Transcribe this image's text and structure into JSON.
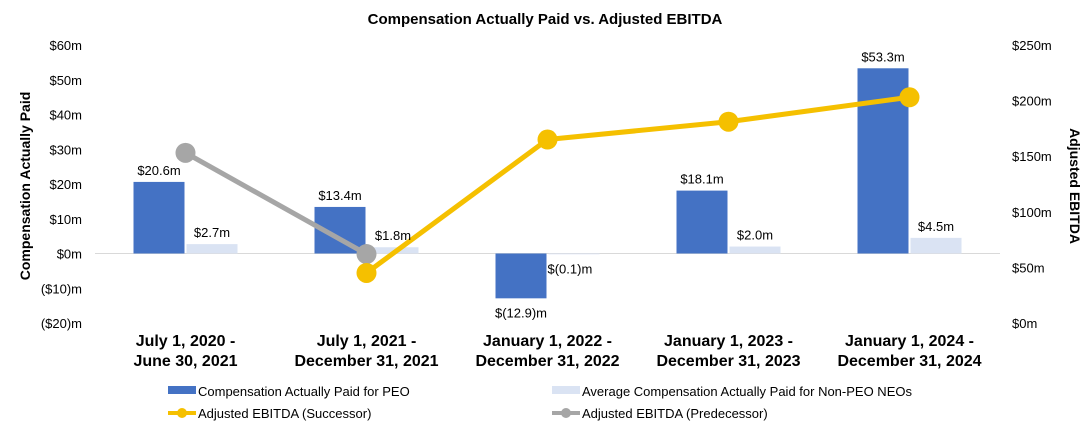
{
  "chart_data": {
    "type": "bar",
    "title": "Compensation Actually Paid vs. Adjusted EBITDA",
    "ylabel": "Compensation Actually Paid",
    "y2label": "Adjusted EBITDA",
    "ylim": [
      -20,
      60
    ],
    "y2lim": [
      0,
      250
    ],
    "yticks": [
      -20,
      -10,
      0,
      10,
      20,
      30,
      40,
      50,
      60
    ],
    "ytick_labels": [
      "($20)m",
      "($10)m",
      "$0m",
      "$10m",
      "$20m",
      "$30m",
      "$40m",
      "$50m",
      "$60m"
    ],
    "y2ticks": [
      0,
      50,
      100,
      150,
      200,
      250
    ],
    "y2tick_labels": [
      "$0m",
      "$50m",
      "$100m",
      "$150m",
      "$200m",
      "$250m"
    ],
    "categories": [
      [
        "July 1, 2020 -",
        "June 30, 2021"
      ],
      [
        "July 1, 2021 -",
        "December 31, 2021"
      ],
      [
        "January 1, 2022 -",
        "December 31, 2022"
      ],
      [
        "January 1, 2023 -",
        "December 31, 2023"
      ],
      [
        "January 1, 2024 -",
        "December 31, 2024"
      ]
    ],
    "series": [
      {
        "name": "Compensation Actually Paid for PEO",
        "kind": "bar",
        "color": "#4472C4",
        "values": [
          20.6,
          13.4,
          -12.9,
          18.1,
          53.3
        ],
        "labels": [
          "$20.6m",
          "$13.4m",
          "$(12.9)m",
          "$18.1m",
          "$53.3m"
        ]
      },
      {
        "name": "Average Compensation Actually Paid for Non-PEO NEOs",
        "kind": "bar",
        "color": "#DAE3F3",
        "values": [
          2.7,
          1.8,
          -0.1,
          2.0,
          4.5
        ],
        "labels": [
          "$2.7m",
          "$1.8m",
          "$(0.1)m",
          "$2.0m",
          "$4.5m"
        ]
      },
      {
        "name": "Adjusted EBITDA (Successor)",
        "kind": "line",
        "axis": "right",
        "color": "#F5C000",
        "values": [
          null,
          45,
          165,
          181,
          203
        ]
      },
      {
        "name": "Adjusted EBITDA (Predecessor)",
        "kind": "line",
        "axis": "right",
        "color": "#A6A6A6",
        "values": [
          153,
          62,
          null,
          null,
          null
        ]
      }
    ],
    "legend_position": "bottom"
  }
}
